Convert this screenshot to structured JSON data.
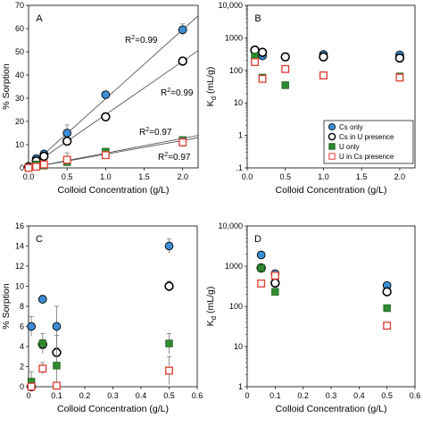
{
  "chart_data": [
    {
      "type": "scatter",
      "panel_label": "A",
      "xlabel": "Colloid Concentration (g/L)",
      "ylabel": "% Sorption",
      "xlim": [
        0,
        2.2
      ],
      "ylim": [
        0,
        70
      ],
      "xticks": [
        "0.0",
        "0.5",
        "1.0",
        "1.5",
        "2.0"
      ],
      "yticks": [
        "0",
        "10",
        "20",
        "30",
        "40",
        "50",
        "60",
        "70"
      ],
      "series": [
        {
          "name": "Cs only",
          "marker": "circle",
          "color": "#3a8fd6",
          "x": [
            0,
            0.1,
            0.2,
            0.5,
            1.0,
            2.0
          ],
          "y": [
            0.5,
            4,
            6,
            15,
            31.5,
            59.5
          ],
          "err": [
            0,
            0.5,
            0.7,
            3.5,
            1,
            2.5
          ]
        },
        {
          "name": "Cs in U presence",
          "marker": "circle",
          "color": "#ffffff",
          "x": [
            0,
            0.1,
            0.2,
            0.5,
            1.0,
            2.0
          ],
          "y": [
            0.5,
            3,
            5,
            11.5,
            22,
            46
          ],
          "err": [
            0,
            0.5,
            0.5,
            1,
            1.5,
            1
          ]
        },
        {
          "name": "U only",
          "marker": "square",
          "color": "#2e8b2e",
          "x": [
            0,
            0.1,
            0.2,
            0.5,
            1.0,
            2.0
          ],
          "y": [
            0,
            1.5,
            1,
            2.5,
            7,
            12
          ],
          "err": [
            0,
            0.3,
            0.3,
            0.5,
            0.5,
            1
          ]
        },
        {
          "name": "U in Cs presence",
          "marker": "square",
          "color": "#ffffff",
          "x": [
            0,
            0.1,
            0.2,
            0.5,
            1.0,
            2.0
          ],
          "y": [
            0,
            0.5,
            1.5,
            3.5,
            5.5,
            11
          ],
          "err": [
            0,
            0.3,
            0.3,
            3,
            1,
            2
          ]
        }
      ],
      "fit_lines": [
        {
          "label": "R2=0.99",
          "x": [
            0,
            2.2
          ],
          "y": [
            0,
            65.5
          ]
        },
        {
          "label": "R2=0.99",
          "x": [
            0,
            2.2
          ],
          "y": [
            0,
            50.5
          ]
        },
        {
          "label": "R2=0.97",
          "x": [
            0,
            2.2
          ],
          "y": [
            0,
            14
          ]
        },
        {
          "label": "R2=0.97",
          "x": [
            0,
            2.2
          ],
          "y": [
            0,
            13
          ]
        }
      ]
    },
    {
      "type": "scatter",
      "panel_label": "B",
      "xlabel": "Colloid Concentration (g/L)",
      "ylabel": "Kd (mL/g)",
      "yscale": "log",
      "xlim": [
        0,
        2.2
      ],
      "ylim": [
        0.1,
        10000
      ],
      "xticks": [
        "0.0",
        "0.5",
        "1.0",
        "1.5",
        "2.0"
      ],
      "yticks": [
        ".1",
        "1",
        "10",
        "100",
        "1000",
        "10,000"
      ],
      "legend": {
        "position": "bottom-right",
        "entries": [
          "Cs only",
          "Cs in U presence",
          "U only",
          "U in Cs presence"
        ]
      },
      "series": [
        {
          "name": "Cs only",
          "marker": "circle",
          "color": "#3a8fd6",
          "x": [
            0.1,
            0.2,
            0.5,
            1.0,
            2.0
          ],
          "y": [
            390,
            280,
            260,
            310,
            300
          ]
        },
        {
          "name": "Cs in U presence",
          "marker": "circle",
          "color": "#ffffff",
          "x": [
            0.1,
            0.2,
            0.5,
            1.0,
            2.0
          ],
          "y": [
            420,
            360,
            260,
            260,
            240
          ]
        },
        {
          "name": "U only",
          "marker": "square",
          "color": "#2e8b2e",
          "x": [
            0.1,
            0.2,
            0.5,
            1.0,
            2.0
          ],
          "y": [
            270,
            60,
            35,
            70,
            65
          ]
        },
        {
          "name": "U in Cs presence",
          "marker": "square",
          "color": "#ffffff",
          "x": [
            0.1,
            0.2,
            0.5,
            1.0,
            2.0
          ],
          "y": [
            180,
            55,
            110,
            70,
            60
          ]
        }
      ]
    },
    {
      "type": "scatter",
      "panel_label": "C",
      "xlabel": "Colloid Concentration (g/L)",
      "ylabel": "% Sorption",
      "xlim": [
        0,
        0.6
      ],
      "ylim": [
        0,
        16
      ],
      "xticks": [
        "0",
        "0.1",
        "0.2",
        "0.3",
        "0.4",
        "0.5",
        "0.6"
      ],
      "yticks": [
        "0",
        "2",
        "4",
        "6",
        "8",
        "10",
        "12",
        "14",
        "16"
      ],
      "series": [
        {
          "name": "Cs only",
          "marker": "circle",
          "color": "#3a8fd6",
          "x": [
            0.01,
            0.05,
            0.1,
            0.5
          ],
          "y": [
            6,
            8.7,
            6,
            14
          ],
          "err": [
            1,
            0.4,
            2,
            0.7
          ]
        },
        {
          "name": "Cs in U presence",
          "marker": "circle",
          "color": "#ffffff",
          "x": [
            0.01,
            0.05,
            0.1,
            0.5
          ],
          "y": [
            0,
            4.2,
            3.4,
            10
          ],
          "err": [
            0,
            0.5,
            0.5,
            0.5
          ]
        },
        {
          "name": "U only",
          "marker": "square",
          "color": "#2e8b2e",
          "x": [
            0.01,
            0.05,
            0.1,
            0.5
          ],
          "y": [
            0.5,
            4.3,
            2.1,
            4.3
          ],
          "err": [
            1,
            1,
            3,
            1
          ]
        },
        {
          "name": "U in Cs presence",
          "marker": "square",
          "color": "#ffffff",
          "x": [
            0.01,
            0.05,
            0.1,
            0.5
          ],
          "y": [
            0,
            1.8,
            0.1,
            1.6
          ],
          "err": [
            0,
            0.6,
            0.3,
            1.4
          ]
        }
      ]
    },
    {
      "type": "scatter",
      "panel_label": "D",
      "xlabel": "Colloid Concentration (g/L)",
      "ylabel": "Kd (mL/g)",
      "yscale": "log",
      "xlim": [
        0,
        0.6
      ],
      "ylim": [
        1,
        10000
      ],
      "xticks": [
        "0",
        "0.1",
        "0.2",
        "0.3",
        "0.4",
        "0.5",
        "0.6"
      ],
      "yticks": [
        "1",
        "10",
        "100",
        "1000",
        "10,000"
      ],
      "series": [
        {
          "name": "Cs only",
          "marker": "circle",
          "color": "#3a8fd6",
          "x": [
            0.05,
            0.1,
            0.5
          ],
          "y": [
            1900,
            650,
            330
          ]
        },
        {
          "name": "Cs in U presence",
          "marker": "circle",
          "color": "#ffffff",
          "x": [
            0.05,
            0.1,
            0.5
          ],
          "y": [
            900,
            380,
            230
          ]
        },
        {
          "name": "U only",
          "marker": "square",
          "color": "#2e8b2e",
          "x": [
            0.05,
            0.1,
            0.5
          ],
          "y": [
            900,
            230,
            90
          ]
        },
        {
          "name": "U in Cs presence",
          "marker": "square",
          "color": "#ffffff",
          "x": [
            0.05,
            0.1,
            0.5
          ],
          "y": [
            370,
            580,
            33
          ]
        }
      ]
    }
  ],
  "colors": {
    "cs_only": "#3a8fd6",
    "cs_in_u_presence": "#ffffff",
    "u_only": "#2e8b2e",
    "u_in_cs_presence_edge": "#e03a2f"
  }
}
